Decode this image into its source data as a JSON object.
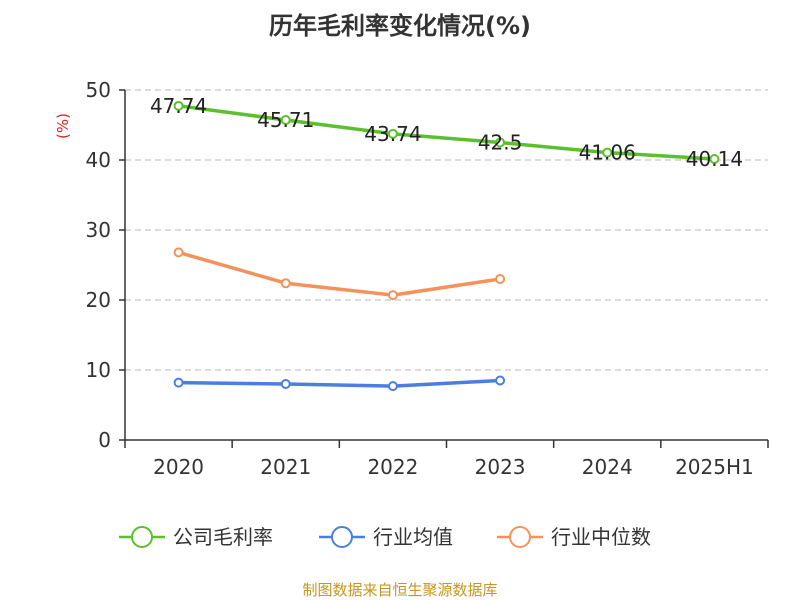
{
  "chart_data": {
    "type": "line",
    "title": "历年毛利率变化情况(%)",
    "ylabel": "(%)",
    "ylim": [
      0,
      50
    ],
    "yticks": [
      0,
      10,
      20,
      30,
      40,
      50
    ],
    "categories": [
      "2020",
      "2021",
      "2022",
      "2023",
      "2024",
      "2025H1"
    ],
    "grid": true,
    "legend_position": "bottom",
    "series": [
      {
        "name": "公司毛利率",
        "color": "#5cc02e",
        "values": [
          47.74,
          45.71,
          43.74,
          42.5,
          41.06,
          40.14
        ],
        "labels": [
          "47.74",
          "45.71",
          "43.74",
          "42.5",
          "41.06",
          "40.14"
        ]
      },
      {
        "name": "行业均值",
        "color": "#4a7fe0",
        "values": [
          8.2,
          8.0,
          7.7,
          8.5,
          null,
          null
        ]
      },
      {
        "name": "行业中位数",
        "color": "#f5915a",
        "values": [
          26.8,
          22.4,
          20.7,
          23.0,
          null,
          null
        ]
      }
    ]
  },
  "source": "制图数据来自恒生聚源数据库"
}
